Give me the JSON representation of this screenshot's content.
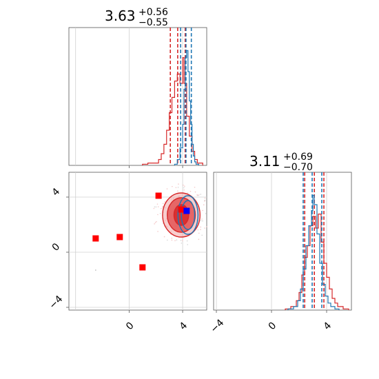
{
  "chart_data": [
    {
      "type": "histogram",
      "panel": "marginal-param1",
      "title": {
        "median": "3.63",
        "plus": "+0.56",
        "minus": "−0.55"
      },
      "xlim": [
        -4.5,
        5.8
      ],
      "grid": true,
      "series": [
        {
          "name": "",
          "color": "#d62728",
          "bins": [
            [
              1.0,
              0.01
            ],
            [
              1.4,
              0.02
            ],
            [
              1.8,
              0.02
            ],
            [
              2.2,
              0.05
            ],
            [
              2.4,
              0.1
            ],
            [
              2.6,
              0.18
            ],
            [
              2.8,
              0.3
            ],
            [
              3.0,
              0.45
            ],
            [
              3.2,
              0.58
            ],
            [
              3.4,
              0.72
            ],
            [
              3.6,
              0.78
            ],
            [
              3.8,
              0.7
            ],
            [
              4.0,
              0.92
            ],
            [
              4.1,
              0.7
            ],
            [
              4.3,
              0.42
            ],
            [
              4.5,
              0.25
            ],
            [
              4.7,
              0.12
            ],
            [
              4.9,
              0.05
            ],
            [
              5.1,
              0.02
            ],
            [
              5.5,
              0
            ]
          ],
          "quantile_lines": [
            3.08,
            3.63,
            4.19
          ]
        },
        {
          "name": "",
          "color": "#1f77b4",
          "bins": [
            [
              3.4,
              0.01
            ],
            [
              3.6,
              0.05
            ],
            [
              3.8,
              0.15
            ],
            [
              4.0,
              0.35
            ],
            [
              4.1,
              0.65
            ],
            [
              4.2,
              0.92
            ],
            [
              4.3,
              0.98
            ],
            [
              4.4,
              0.8
            ],
            [
              4.5,
              0.55
            ],
            [
              4.6,
              0.35
            ],
            [
              4.7,
              0.18
            ],
            [
              4.8,
              0.08
            ],
            [
              4.9,
              0.03
            ],
            [
              5.0,
              0.01
            ],
            [
              5.2,
              0
            ]
          ],
          "quantile_lines": [
            3.85,
            4.25,
            4.65
          ]
        }
      ]
    },
    {
      "type": "scatter",
      "panel": "joint-param1-param2",
      "xlim": [
        -4.5,
        5.8
      ],
      "ylim": [
        -4.2,
        5.8
      ],
      "xticks": [
        "0",
        "4"
      ],
      "yticks": [
        "−4",
        "0",
        "4"
      ],
      "grid": true,
      "contours": [
        {
          "color": "#d62728",
          "center": [
            3.9,
            2.7
          ],
          "radii": [
            [
              1.4,
              1.6
            ],
            [
              1.05,
              1.25
            ],
            [
              0.55,
              0.75
            ]
          ]
        },
        {
          "color": "#1f77b4",
          "center": [
            4.4,
            2.7
          ],
          "radii": [
            [
              0.75,
              1.4
            ],
            [
              0.5,
              1.05
            ]
          ]
        }
      ],
      "markers": [
        {
          "x": -2.5,
          "y": 1.0,
          "color": "#ff0000"
        },
        {
          "x": -0.7,
          "y": 1.1,
          "color": "#ff0000"
        },
        {
          "x": 1.0,
          "y": -1.1,
          "color": "#ff0000"
        },
        {
          "x": 2.2,
          "y": 4.1,
          "color": "#ff0000"
        },
        {
          "x": 3.9,
          "y": 3.1,
          "color": "#ff0000"
        },
        {
          "x": 4.3,
          "y": 3.0,
          "color": "#0000ff"
        }
      ]
    },
    {
      "type": "histogram",
      "panel": "marginal-param2",
      "title": {
        "median": "3.11",
        "plus": "+0.69",
        "minus": "−0.70"
      },
      "xlim": [
        -4.2,
        5.8
      ],
      "xticks": [
        "−4",
        "0",
        "4"
      ],
      "grid": true,
      "series": [
        {
          "name": "",
          "color": "#d62728",
          "bins": [
            [
              1.0,
              0.01
            ],
            [
              1.4,
              0.03
            ],
            [
              1.8,
              0.08
            ],
            [
              2.0,
              0.15
            ],
            [
              2.2,
              0.3
            ],
            [
              2.4,
              0.45
            ],
            [
              2.6,
              0.55
            ],
            [
              2.8,
              0.72
            ],
            [
              3.0,
              0.8
            ],
            [
              3.2,
              0.7
            ],
            [
              3.4,
              0.82
            ],
            [
              3.6,
              0.58
            ],
            [
              3.8,
              0.4
            ],
            [
              4.0,
              0.28
            ],
            [
              4.2,
              0.18
            ],
            [
              4.4,
              0.1
            ],
            [
              4.6,
              0.06
            ],
            [
              4.8,
              0.03
            ],
            [
              5.2,
              0.01
            ],
            [
              5.6,
              0
            ]
          ],
          "quantile_lines": [
            2.41,
            3.11,
            3.8
          ]
        },
        {
          "name": "",
          "color": "#1f77b4",
          "bins": [
            [
              1.2,
              0.01
            ],
            [
              1.6,
              0.03
            ],
            [
              1.9,
              0.08
            ],
            [
              2.1,
              0.18
            ],
            [
              2.3,
              0.35
            ],
            [
              2.5,
              0.55
            ],
            [
              2.7,
              0.72
            ],
            [
              2.9,
              0.85
            ],
            [
              3.0,
              0.98
            ],
            [
              3.1,
              0.9
            ],
            [
              3.3,
              0.65
            ],
            [
              3.5,
              0.4
            ],
            [
              3.7,
              0.22
            ],
            [
              3.9,
              0.12
            ],
            [
              4.1,
              0.06
            ],
            [
              4.3,
              0.03
            ],
            [
              4.6,
              0.01
            ],
            [
              4.9,
              0
            ]
          ],
          "quantile_lines": [
            2.3,
            2.95,
            3.65
          ]
        }
      ]
    }
  ]
}
